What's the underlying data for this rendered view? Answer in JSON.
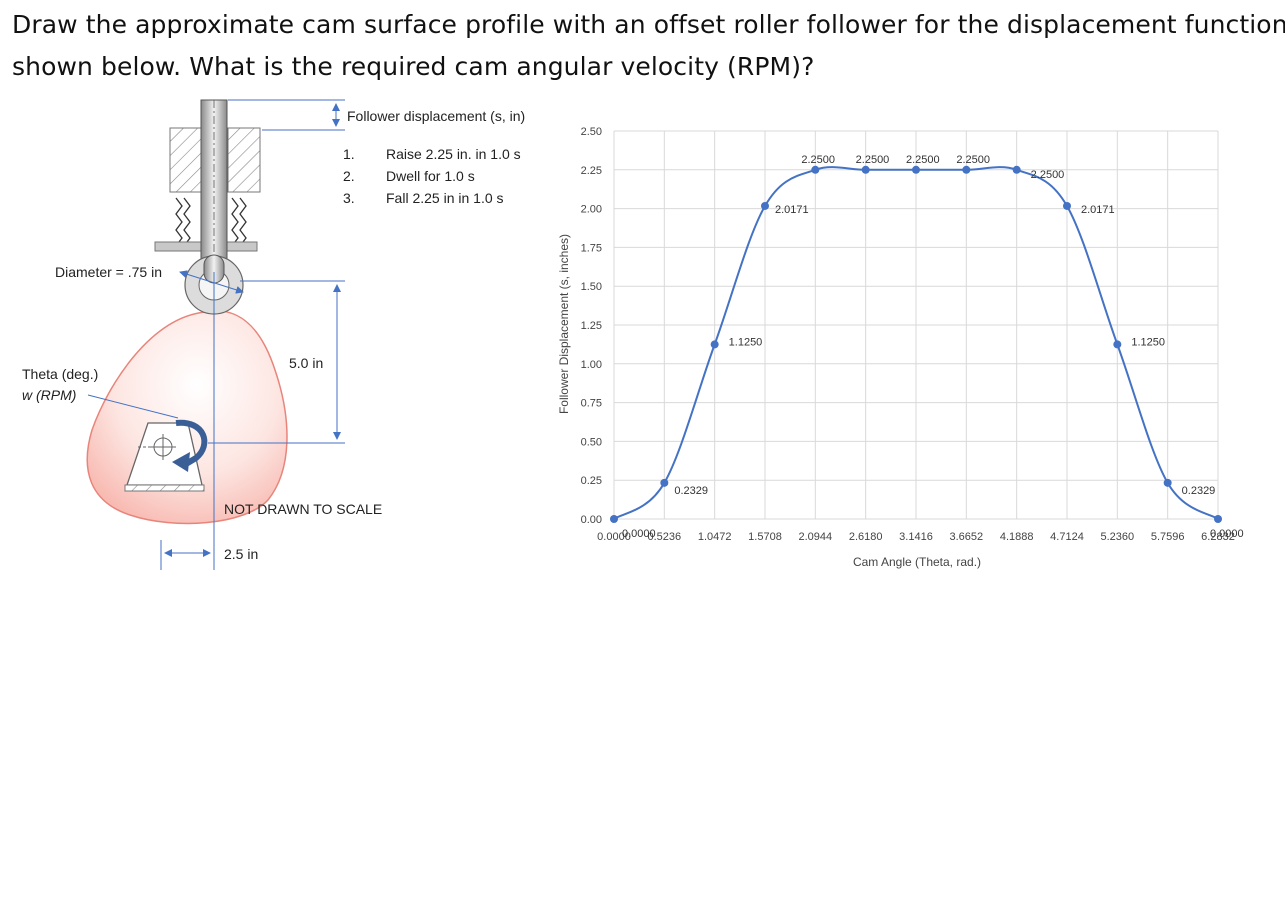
{
  "question": {
    "line1": "Draw the approximate cam surface profile with an offset roller follower for the displacement function",
    "line2": "shown below. What is the required cam angular velocity (RPM)?"
  },
  "diagram": {
    "follower_label": "Follower displacement (s, in)",
    "steps": [
      {
        "num": "1.",
        "text": "Raise 2.25 in. in 1.0 s"
      },
      {
        "num": "2.",
        "text": "Dwell for 1.0 s"
      },
      {
        "num": "3.",
        "text": "Fall 2.25 in in 1.0 s"
      }
    ],
    "diameter_label": "Diameter = .75 in",
    "height_label": "5.0 in",
    "theta_label": "Theta (deg.)",
    "omega_label": "w (RPM)",
    "offset_label": "2.5 in",
    "scale_note": "NOT DRAWN TO SCALE",
    "colors": {
      "cam": "#f9b9b0",
      "cam_edge": "#e8857b",
      "arrow": "#3a5f96",
      "dim_line": "#4472c4"
    }
  },
  "chart_data": {
    "type": "line",
    "title": "",
    "xlabel": "Cam Angle (Theta, rad.)",
    "ylabel": "Follower Displacement (s, inches)",
    "ylim": [
      0,
      2.5
    ],
    "xlim": [
      0,
      6.2832
    ],
    "yticks": [
      "0.00",
      "0.25",
      "0.50",
      "0.75",
      "1.00",
      "1.25",
      "1.50",
      "1.75",
      "2.00",
      "2.25",
      "2.50"
    ],
    "xticks": [
      "0.0000",
      "0.5236",
      "1.0472",
      "1.5708",
      "2.0944",
      "2.6180",
      "3.1416",
      "3.6652",
      "4.1888",
      "4.7124",
      "5.2360",
      "5.7596",
      "6.2832"
    ],
    "grid": true,
    "color": "#4472c4",
    "points": [
      {
        "x": 0.0,
        "y": 0.0,
        "label": "0.0000"
      },
      {
        "x": 0.5236,
        "y": 0.2329,
        "label": "0.2329"
      },
      {
        "x": 1.0472,
        "y": 1.125,
        "label": "1.1250"
      },
      {
        "x": 1.5708,
        "y": 2.0171,
        "label": "2.0171"
      },
      {
        "x": 2.0944,
        "y": 2.25,
        "label": "2.2500"
      },
      {
        "x": 2.618,
        "y": 2.25,
        "label": "2.2500"
      },
      {
        "x": 3.1416,
        "y": 2.25,
        "label": "2.2500"
      },
      {
        "x": 3.6652,
        "y": 2.25,
        "label": "2.2500"
      },
      {
        "x": 4.1888,
        "y": 2.25,
        "label": "2.2500"
      },
      {
        "x": 4.7124,
        "y": 2.0171,
        "label": "2.0171"
      },
      {
        "x": 5.236,
        "y": 1.125,
        "label": "1.1250"
      },
      {
        "x": 5.7596,
        "y": 0.2329,
        "label": "0.2329"
      },
      {
        "x": 6.2832,
        "y": 0.0,
        "label": "0.0000"
      }
    ]
  }
}
